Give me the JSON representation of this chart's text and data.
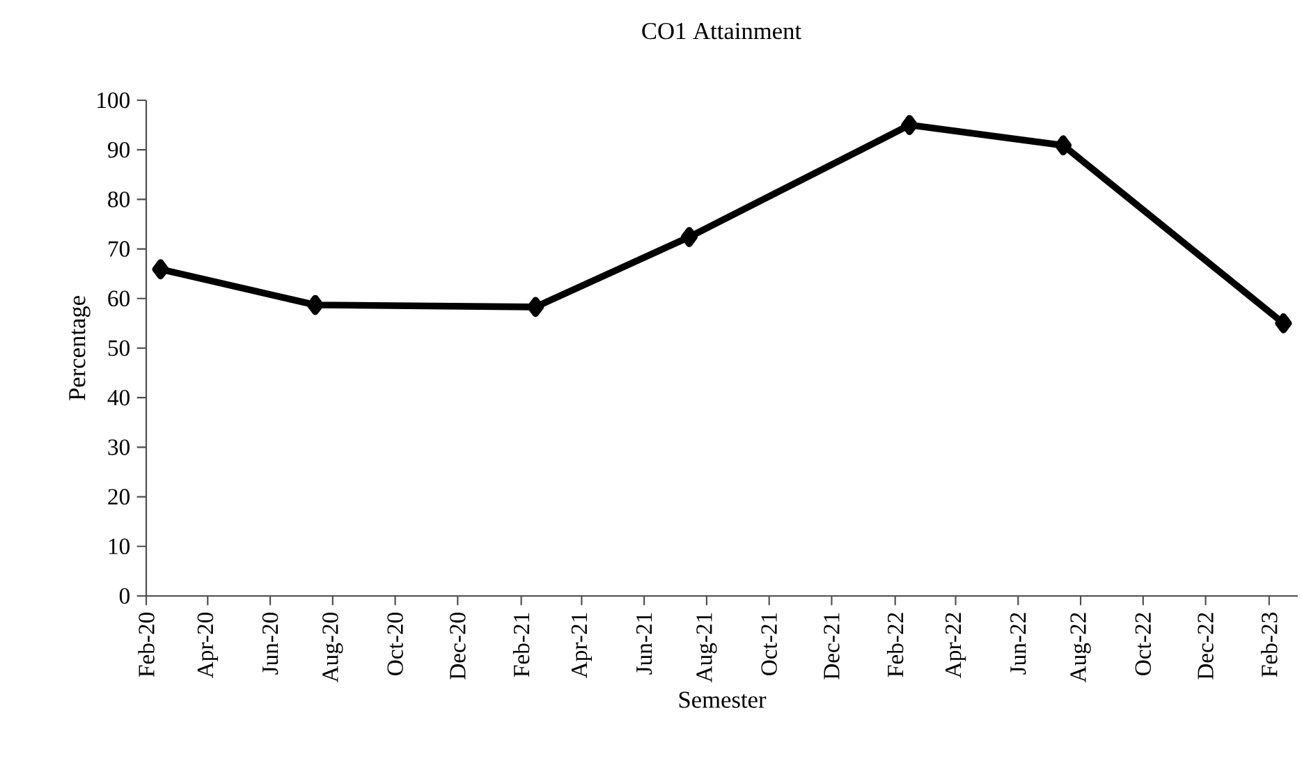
{
  "chart_data": {
    "type": "line",
    "title": "CO1 Attainment",
    "xlabel": "Semester",
    "ylabel": "Percentage",
    "x": [
      "2020-02-15",
      "2020-07-15",
      "2021-02-15",
      "2021-07-15",
      "2022-02-15",
      "2022-07-15",
      "2023-02-15"
    ],
    "series": [
      {
        "color": "#000000",
        "values": [
          65.9,
          58.7,
          58.3,
          72.4,
          95.0,
          90.9,
          55.0
        ]
      }
    ],
    "marker": "diamond",
    "line_style": "solid",
    "grid": false,
    "xlim": [
      "2020-02-01",
      "2023-03-01"
    ],
    "xticks": [
      {
        "value": "2020-02-01",
        "label": "Feb-20"
      },
      {
        "value": "2020-04-01",
        "label": "Apr-20"
      },
      {
        "value": "2020-06-01",
        "label": "Jun-20"
      },
      {
        "value": "2020-08-01",
        "label": "Aug-20"
      },
      {
        "value": "2020-10-01",
        "label": "Oct-20"
      },
      {
        "value": "2020-12-01",
        "label": "Dec-20"
      },
      {
        "value": "2021-02-01",
        "label": "Feb-21"
      },
      {
        "value": "2021-04-01",
        "label": "Apr-21"
      },
      {
        "value": "2021-06-01",
        "label": "Jun-21"
      },
      {
        "value": "2021-08-01",
        "label": "Aug-21"
      },
      {
        "value": "2021-10-01",
        "label": "Oct-21"
      },
      {
        "value": "2021-12-01",
        "label": "Dec-21"
      },
      {
        "value": "2022-02-01",
        "label": "Feb-22"
      },
      {
        "value": "2022-04-01",
        "label": "Apr-22"
      },
      {
        "value": "2022-06-01",
        "label": "Jun-22"
      },
      {
        "value": "2022-08-01",
        "label": "Aug-22"
      },
      {
        "value": "2022-10-01",
        "label": "Oct-22"
      },
      {
        "value": "2022-12-01",
        "label": "Dec-22"
      },
      {
        "value": "2023-02-01",
        "label": "Feb-23"
      }
    ],
    "ylim": [
      0,
      100
    ],
    "yticks": [
      0,
      10,
      20,
      30,
      40,
      50,
      60,
      70,
      80,
      90,
      100
    ]
  }
}
